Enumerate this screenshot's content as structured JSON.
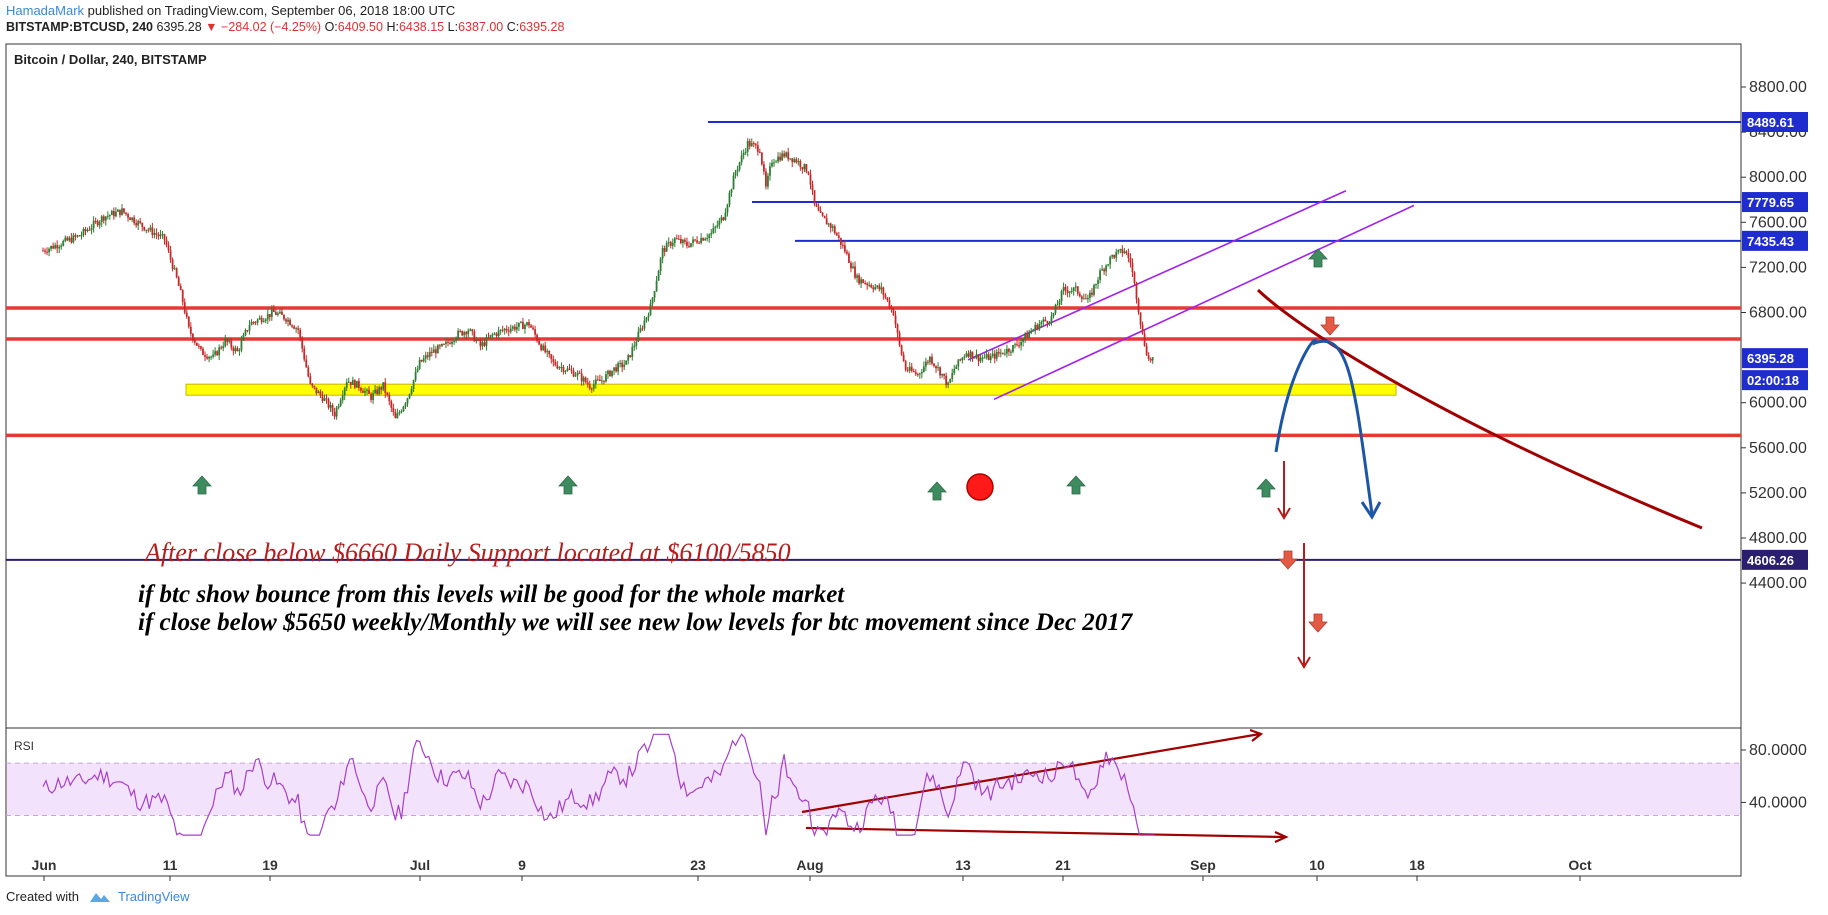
{
  "header": {
    "author": "HamadaMark",
    "published": " published on TradingView.com, September 06, 2018 18:00 UTC",
    "symbol": "BITSTAMP:BTCUSD, 240",
    "price": "6395.28",
    "change": "▼ −284.02 (−4.25%)",
    "ohlc": {
      "o_label": "O:",
      "o": "6409.50",
      "h_label": "H:",
      "h": "6438.15",
      "l_label": "L:",
      "l": "6387.00",
      "c_label": "C:",
      "c": "6395.28"
    }
  },
  "footer": {
    "created_with": "Created with",
    "brand": "TradingView"
  },
  "chart_data": {
    "type": "candlestick",
    "title": "Bitcoin / Dollar, 240, BITSTAMP",
    "y_ticks": [
      "8800.00",
      "8400.00",
      "8000.00",
      "7600.00",
      "7200.00",
      "6800.00",
      "6000.00",
      "5600.00",
      "5200.00",
      "4800.00",
      "4400.00"
    ],
    "x_ticks": [
      "Jun",
      "11",
      "19",
      "Jul",
      "9",
      "23",
      "Aug",
      "13",
      "21",
      "Sep",
      "10",
      "18",
      "Oct"
    ],
    "ylim": [
      4250,
      8950
    ],
    "price_path": [
      [
        0,
        7350
      ],
      [
        3,
        7480
      ],
      [
        5,
        7650
      ],
      [
        6.5,
        7700
      ],
      [
        8,
        7580
      ],
      [
        10,
        7450
      ],
      [
        11,
        7100
      ],
      [
        11.5,
        6900
      ],
      [
        12,
        6650
      ],
      [
        13,
        6450
      ],
      [
        14,
        6400
      ],
      [
        15,
        6550
      ],
      [
        16,
        6450
      ],
      [
        17,
        6700
      ],
      [
        18,
        6750
      ],
      [
        19,
        6800
      ],
      [
        20,
        6750
      ],
      [
        21,
        6650
      ],
      [
        22,
        6150
      ],
      [
        23,
        6050
      ],
      [
        24,
        5900
      ],
      [
        25,
        6200
      ],
      [
        26,
        6150
      ],
      [
        27,
        6050
      ],
      [
        28,
        6150
      ],
      [
        29,
        5850
      ],
      [
        30,
        6050
      ],
      [
        31,
        6350
      ],
      [
        32,
        6450
      ],
      [
        33,
        6500
      ],
      [
        34,
        6600
      ],
      [
        35,
        6650
      ],
      [
        36,
        6500
      ],
      [
        37,
        6600
      ],
      [
        38,
        6650
      ],
      [
        40,
        6700
      ],
      [
        41,
        6500
      ],
      [
        42,
        6350
      ],
      [
        43,
        6300
      ],
      [
        44,
        6250
      ],
      [
        45,
        6150
      ],
      [
        46,
        6200
      ],
      [
        47,
        6300
      ],
      [
        48,
        6350
      ],
      [
        49,
        6600
      ],
      [
        50,
        6850
      ],
      [
        51,
        7350
      ],
      [
        52,
        7450
      ],
      [
        53,
        7400
      ],
      [
        54,
        7450
      ],
      [
        55,
        7500
      ],
      [
        56,
        7650
      ],
      [
        57,
        8050
      ],
      [
        58,
        8300
      ],
      [
        59,
        8250
      ],
      [
        59.5,
        7900
      ],
      [
        60,
        8150
      ],
      [
        61,
        8200
      ],
      [
        62,
        8150
      ],
      [
        63,
        8050
      ],
      [
        63.5,
        7750
      ],
      [
        64,
        7650
      ],
      [
        65,
        7550
      ],
      [
        66,
        7350
      ],
      [
        67,
        7100
      ],
      [
        68,
        7050
      ],
      [
        69,
        7000
      ],
      [
        70,
        6800
      ],
      [
        70.5,
        6500
      ],
      [
        71,
        6300
      ],
      [
        72,
        6250
      ],
      [
        73,
        6400
      ],
      [
        74,
        6250
      ],
      [
        74.5,
        6150
      ],
      [
        75,
        6300
      ],
      [
        76,
        6450
      ],
      [
        77,
        6400
      ],
      [
        78,
        6400
      ],
      [
        79,
        6450
      ],
      [
        80,
        6500
      ],
      [
        81,
        6600
      ],
      [
        82,
        6700
      ],
      [
        83,
        6750
      ],
      [
        84,
        7000
      ],
      [
        85,
        7000
      ],
      [
        86,
        6900
      ],
      [
        87,
        7150
      ],
      [
        88,
        7300
      ],
      [
        89,
        7350
      ],
      [
        89.5,
        7250
      ],
      [
        90,
        6950
      ],
      [
        90.5,
        6600
      ],
      [
        91,
        6380
      ],
      [
        91.5,
        6395
      ]
    ],
    "levels": [
      {
        "value": 8489.61,
        "label": "8489.61",
        "color": "#1f2dcf"
      },
      {
        "value": 7779.65,
        "label": "7779.65",
        "color": "#1f2dcf"
      },
      {
        "value": 7435.43,
        "label": "7435.43",
        "color": "#1f2dcf"
      },
      {
        "value": 6395.28,
        "label": "6395.28",
        "color": "#1f2dcf"
      },
      {
        "value": 4606.26,
        "label": "4606.26",
        "color": "#2a1f6e"
      }
    ],
    "countdown": "02:00:18",
    "support_lines_red": [
      6840,
      6565,
      5710
    ],
    "support_zone_yellow": 6120,
    "annotation_main": "After close below $6660 Daily Support located at $6100/5850",
    "annotation_1": "if btc show bounce from this levels will be good for the whole market",
    "annotation_2": "if close below $5650 weekly/Monthly we will see new low levels for btc movement since Dec 2017",
    "rsi": {
      "label": "RSI",
      "y_ticks": [
        "80.0000",
        "40.0000"
      ],
      "band": [
        70,
        30
      ],
      "ylim": [
        10,
        100
      ]
    },
    "colors": {
      "up": "#2e7d32",
      "down": "#c62828",
      "blue": "#1f2dcf",
      "purple": "#a020f0",
      "red_line": "#e53935",
      "dark_red": "#a00000",
      "yellow": "#ffff00"
    }
  }
}
